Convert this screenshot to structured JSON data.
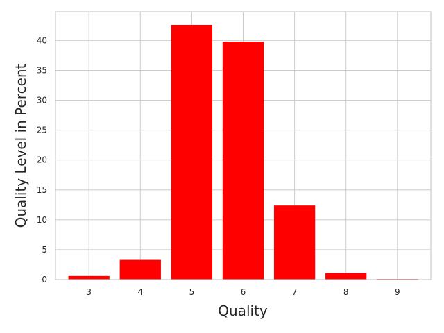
{
  "chart_data": {
    "type": "bar",
    "title": "",
    "xlabel": "Quality",
    "ylabel": "Quality Level in Percent",
    "categories": [
      "3",
      "4",
      "5",
      "6",
      "7",
      "8",
      "9"
    ],
    "x": [
      3,
      4,
      5,
      6,
      7,
      8,
      9
    ],
    "values": [
      0.6,
      3.3,
      42.6,
      39.8,
      12.4,
      1.1,
      0.1
    ],
    "xlim": [
      2.35,
      9.65
    ],
    "ylim": [
      0,
      44.8
    ],
    "yticks": [
      0,
      5,
      10,
      15,
      20,
      25,
      30,
      35,
      40
    ],
    "grid": true,
    "legend": "none",
    "colors": {
      "bar": "#ff0000",
      "grid": "#cccccc",
      "spine": "#cccccc",
      "text": "#262626",
      "background": "#ffffff"
    }
  }
}
